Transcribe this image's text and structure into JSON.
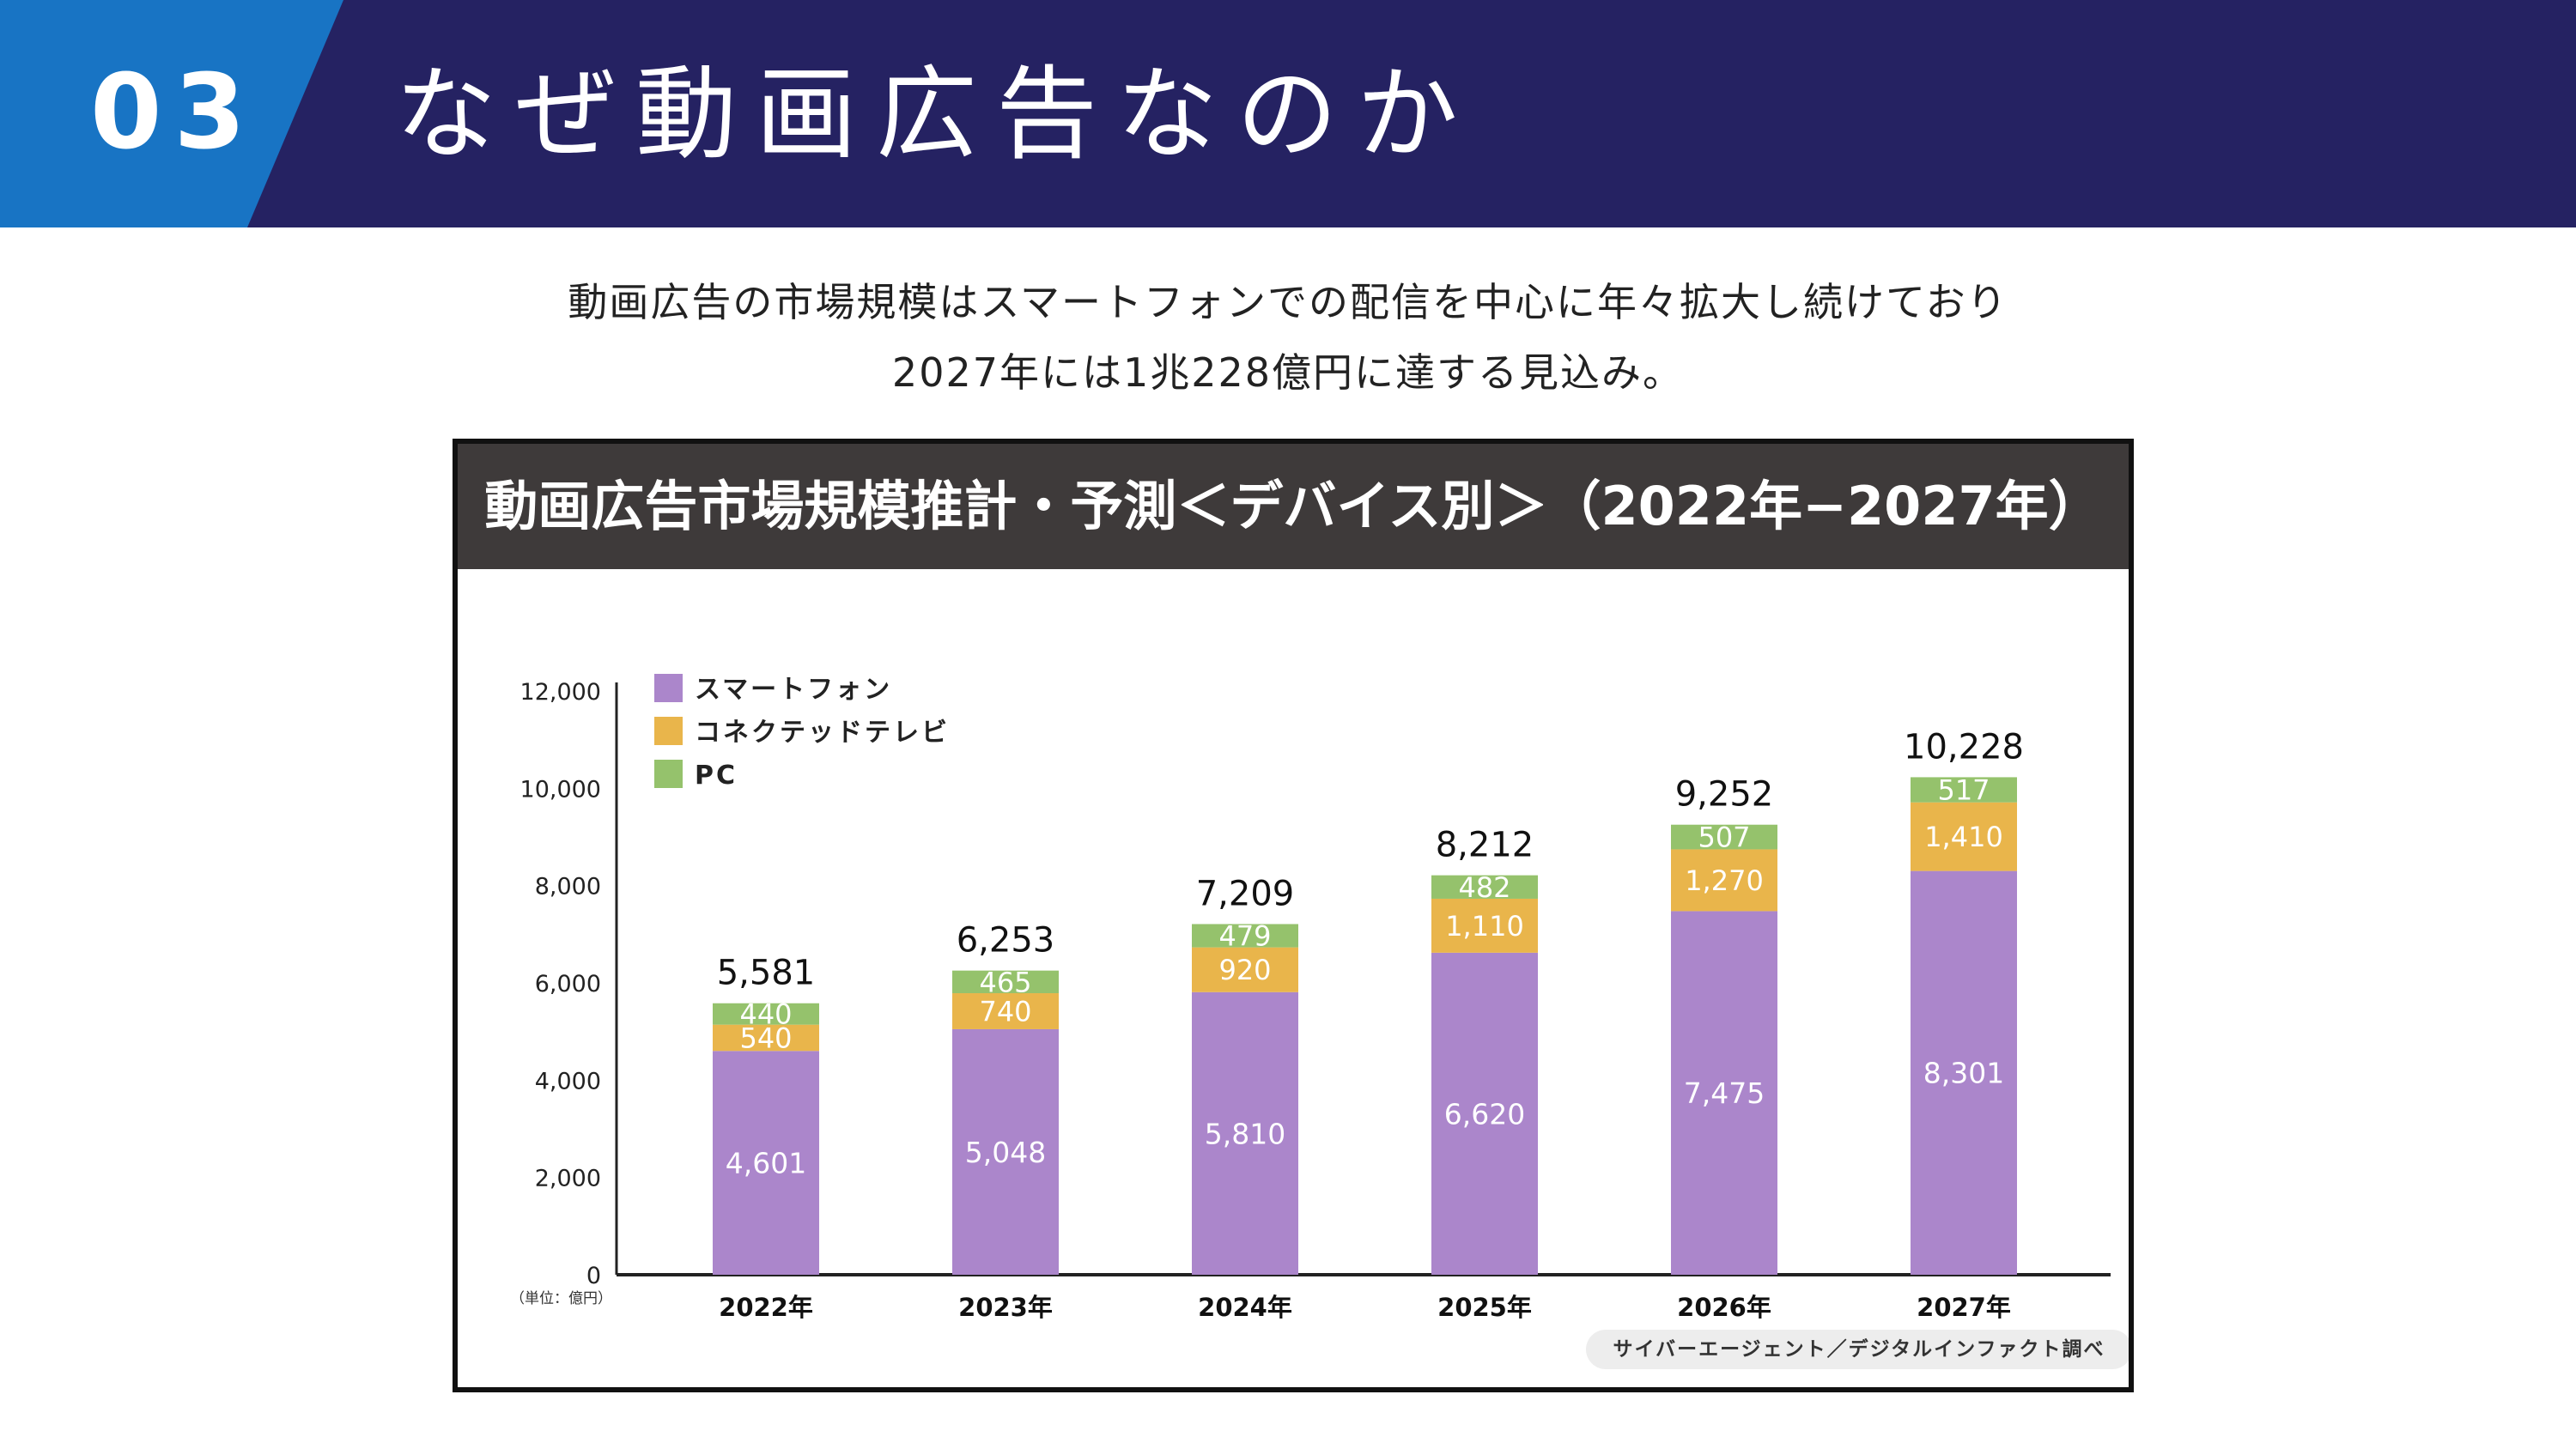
{
  "header": {
    "section_number": "03",
    "title": "なぜ動画広告なのか"
  },
  "intro": {
    "line1": "動画広告の市場規模はスマートフォンでの配信を中心に年々拡大し続けており",
    "line2": "2027年には1兆228億円に達する見込み。"
  },
  "chart_data": {
    "type": "bar",
    "stacked": true,
    "title": "動画広告市場規模推計・予測＜デバイス別＞（2022年−2027年）",
    "categories": [
      "2022年",
      "2023年",
      "2024年",
      "2025年",
      "2026年",
      "2027年"
    ],
    "series": [
      {
        "name": "スマートフォン",
        "color": "#ab86cb",
        "values": [
          4601,
          5048,
          5810,
          6620,
          7475,
          8301
        ],
        "labels": [
          "4,601",
          "5,048",
          "5,810",
          "6,620",
          "7,475",
          "8,301"
        ]
      },
      {
        "name": "コネクテッドテレビ",
        "color": "#e9b54b",
        "values": [
          540,
          740,
          920,
          1110,
          1270,
          1410
        ],
        "labels": [
          "540",
          "740",
          "920",
          "1,110",
          "1,270",
          "1,410"
        ]
      },
      {
        "name": "PC",
        "color": "#95c26c",
        "values": [
          440,
          465,
          479,
          482,
          507,
          517
        ],
        "labels": [
          "440",
          "465",
          "479",
          "482",
          "507",
          "517"
        ]
      }
    ],
    "totals": [
      5581,
      6253,
      7209,
      8212,
      9252,
      10228
    ],
    "total_labels": [
      "5,581",
      "6,253",
      "7,209",
      "8,212",
      "9,252",
      "10,228"
    ],
    "y_ticks": [
      0,
      2000,
      4000,
      6000,
      8000,
      10000,
      12000
    ],
    "y_tick_labels": [
      "0",
      "2,000",
      "4,000",
      "6,000",
      "8,000",
      "10,000",
      "12,000"
    ],
    "ylim": [
      0,
      12000
    ],
    "unit_label": "（単位：億円）",
    "legend_position": "top-left",
    "grid": false,
    "source": "サイバーエージェント／デジタルインファクト調べ"
  }
}
